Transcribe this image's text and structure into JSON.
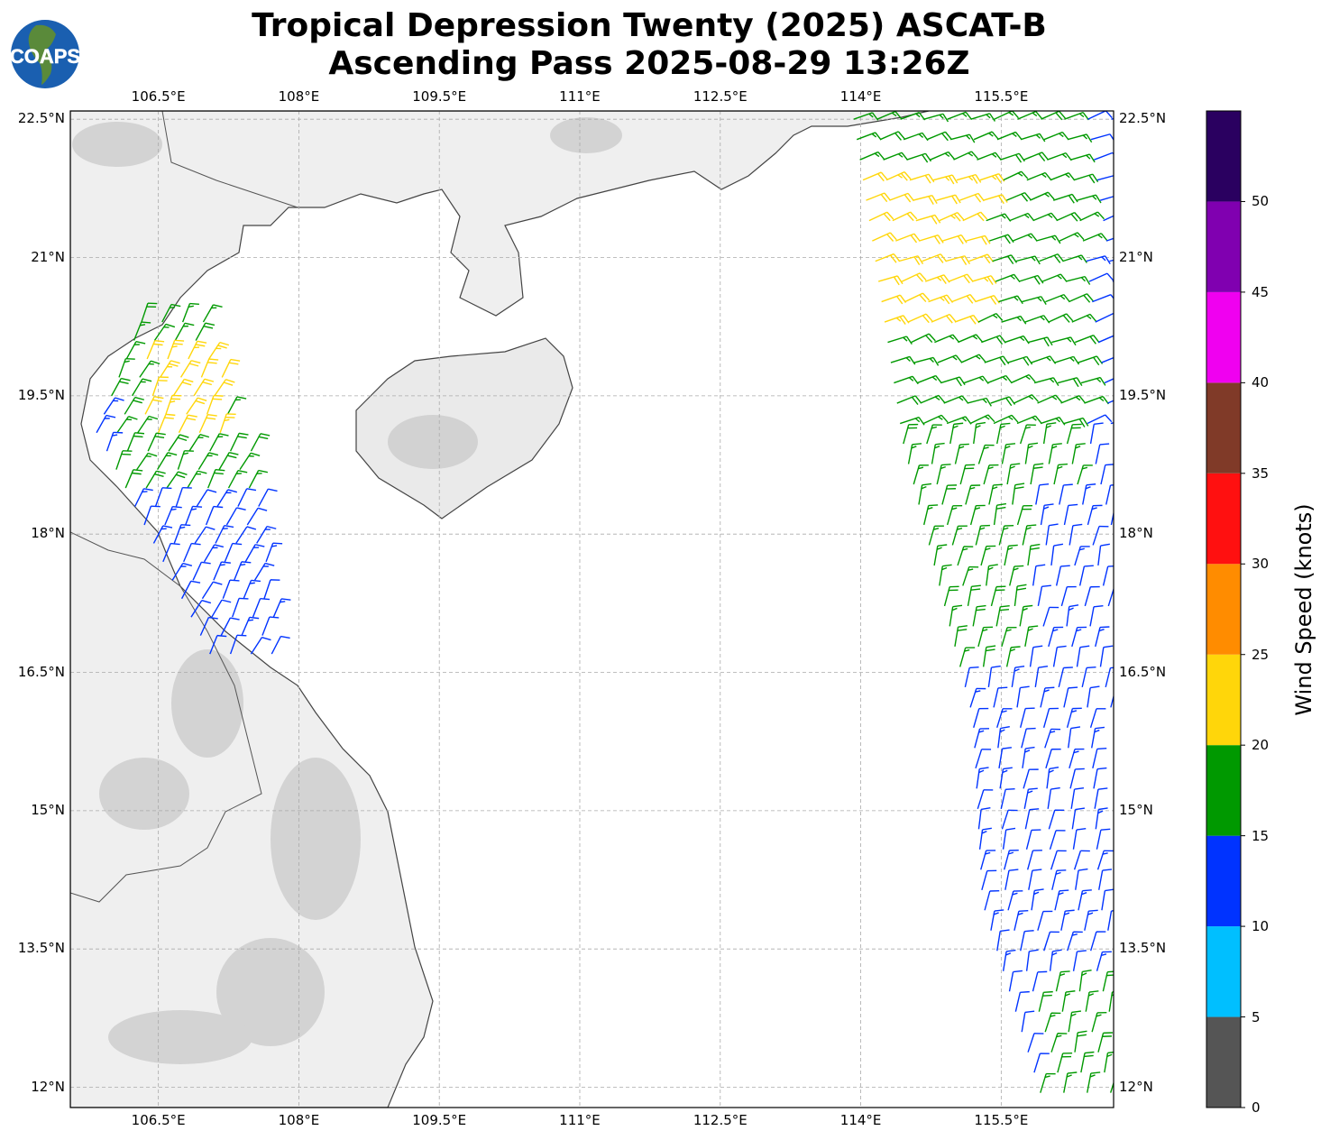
{
  "title_line1": "Tropical Depression Twenty (2025) ASCAT-B",
  "title_line2": "Ascending Pass 2025-08-29 13:26Z",
  "logo_text": "COAPS",
  "map": {
    "lon_range": [
      105.56,
      116.7
    ],
    "lat_range": [
      11.78,
      22.59
    ],
    "lon_ticks": [
      "106.5°E",
      "108°E",
      "109.5°E",
      "111°E",
      "112.5°E",
      "114°E",
      "115.5°E"
    ],
    "lat_ticks": [
      "22.5°N",
      "21°N",
      "19.5°N",
      "18°N",
      "16.5°N",
      "15°N",
      "13.5°N",
      "12°N"
    ]
  },
  "colorbar": {
    "label": "Wind Speed (knots)",
    "ticks": [
      "0",
      "5",
      "10",
      "15",
      "20",
      "25",
      "30",
      "35",
      "40",
      "45",
      "50"
    ],
    "bounds": [
      0,
      5,
      10,
      15,
      20,
      25,
      30,
      35,
      40,
      45,
      50,
      55
    ],
    "colors": [
      "#555555",
      "#00bfff",
      "#0033ff",
      "#009900",
      "#ffd60a",
      "#ff8c00",
      "#ff1010",
      "#803a28",
      "#f000f0",
      "#8000b0",
      "#2a0060"
    ]
  }
}
